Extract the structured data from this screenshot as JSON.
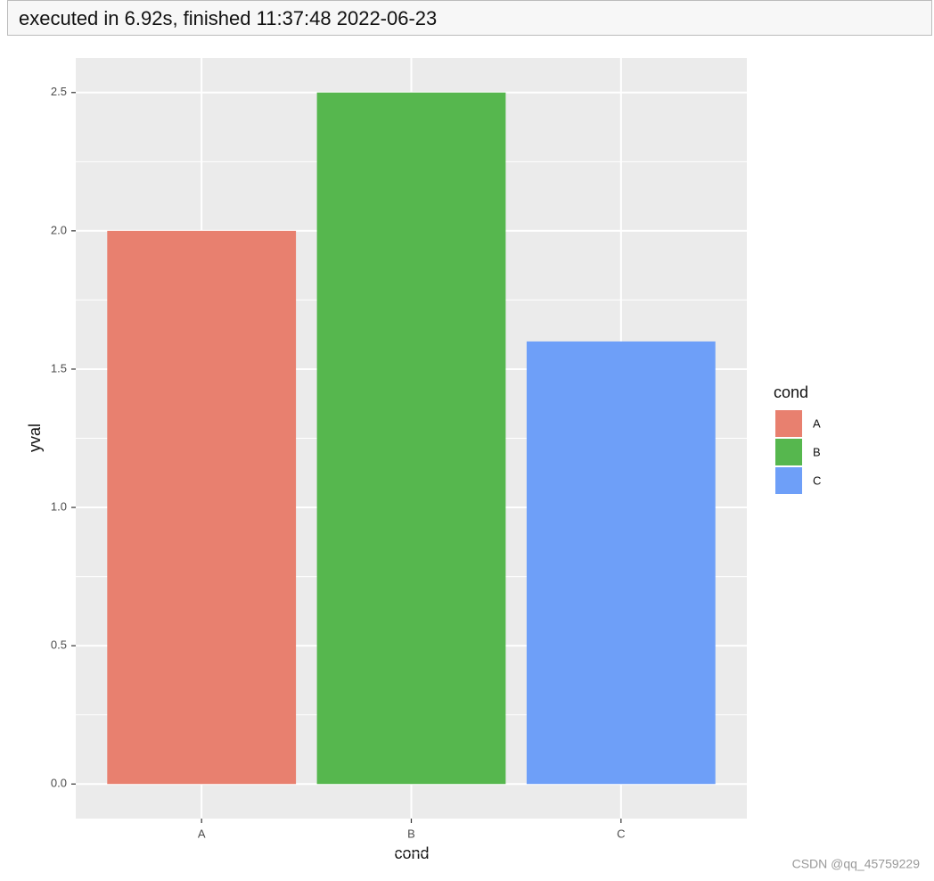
{
  "header": {
    "status": "executed in 6.92s, finished 11:37:48 2022-06-23"
  },
  "watermark": "CSDN @qq_45759229",
  "chart_data": {
    "type": "bar",
    "x_label": "cond",
    "y_label": "yval",
    "legend_title": "cond",
    "categories": [
      "A",
      "B",
      "C"
    ],
    "values": [
      2.0,
      2.5,
      1.6
    ],
    "colors": [
      "#e8806f",
      "#56b74e",
      "#6e9ff8"
    ],
    "ylim": [
      -0.125,
      2.625
    ],
    "yticks": [
      {
        "value": 0,
        "label": "0.0"
      },
      0.5,
      {
        "value": 1,
        "label": "1.0"
      },
      1.5,
      {
        "value": 2,
        "label": "2.0"
      },
      2.5
    ],
    "grid": true,
    "legend": "right"
  }
}
